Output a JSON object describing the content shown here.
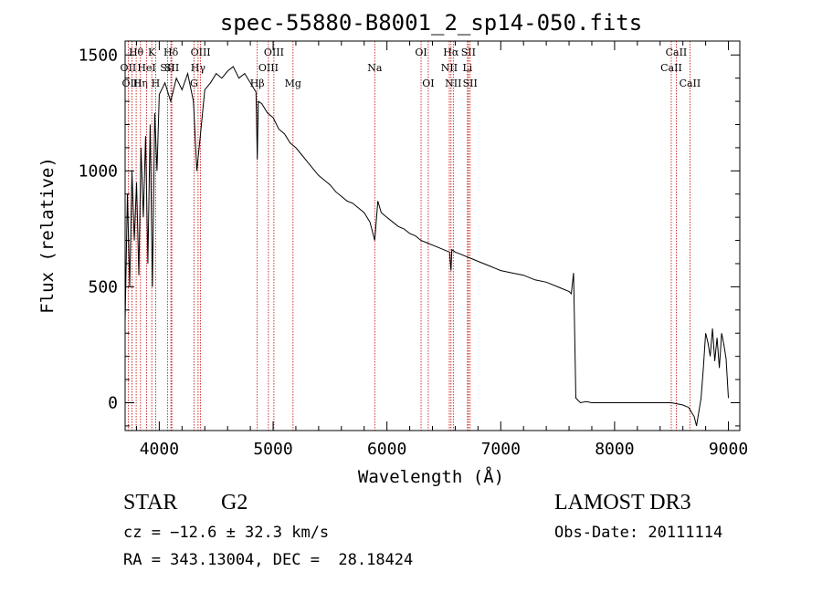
{
  "chart_data": {
    "type": "line",
    "title": "spec-55880-B8001_2_sp14-050.fits",
    "xlabel": "Wavelength (Å)",
    "ylabel": "Flux (relative)",
    "xlim": [
      3700,
      9100
    ],
    "ylim": [
      -120,
      1560
    ],
    "xticks": [
      4000,
      5000,
      6000,
      7000,
      8000,
      9000
    ],
    "yticks": [
      0,
      500,
      1000,
      1500
    ],
    "line_color": "#000000",
    "marker_color": "#c00000",
    "series": [
      {
        "name": "spectrum",
        "x": [
          3700,
          3720,
          3740,
          3760,
          3780,
          3800,
          3820,
          3840,
          3860,
          3880,
          3900,
          3920,
          3940,
          3960,
          3980,
          4000,
          4050,
          4100,
          4150,
          4200,
          4250,
          4300,
          4330,
          4360,
          4400,
          4450,
          4500,
          4550,
          4600,
          4650,
          4700,
          4750,
          4800,
          4850,
          4861,
          4870,
          4900,
          4950,
          5000,
          5050,
          5100,
          5150,
          5200,
          5250,
          5300,
          5350,
          5400,
          5450,
          5500,
          5550,
          5600,
          5650,
          5700,
          5750,
          5800,
          5850,
          5893,
          5920,
          5950,
          6000,
          6050,
          6100,
          6150,
          6200,
          6250,
          6300,
          6350,
          6400,
          6450,
          6500,
          6550,
          6563,
          6570,
          6600,
          6650,
          6700,
          6750,
          6800,
          6850,
          6900,
          6950,
          7000,
          7100,
          7200,
          7300,
          7400,
          7500,
          7550,
          7600,
          7620,
          7640,
          7660,
          7680,
          7700,
          7750,
          7800,
          7900,
          8000,
          8100,
          8200,
          8300,
          8400,
          8500,
          8600,
          8650,
          8700,
          8720,
          8740,
          8760,
          8780,
          8800,
          8820,
          8840,
          8860,
          8880,
          8900,
          8920,
          8940,
          8960,
          8980,
          9000
        ],
        "values": [
          350,
          900,
          500,
          1000,
          700,
          950,
          550,
          1100,
          800,
          1150,
          600,
          1200,
          500,
          1250,
          1000,
          1330,
          1380,
          1300,
          1400,
          1350,
          1420,
          1300,
          1000,
          1150,
          1350,
          1380,
          1420,
          1400,
          1430,
          1450,
          1400,
          1420,
          1380,
          1340,
          1050,
          1300,
          1290,
          1250,
          1230,
          1180,
          1160,
          1120,
          1100,
          1070,
          1040,
          1010,
          980,
          960,
          940,
          910,
          890,
          870,
          860,
          840,
          820,
          780,
          700,
          870,
          820,
          800,
          780,
          760,
          750,
          730,
          720,
          700,
          690,
          680,
          670,
          660,
          650,
          570,
          660,
          650,
          640,
          630,
          620,
          610,
          600,
          590,
          580,
          570,
          560,
          550,
          530,
          520,
          500,
          490,
          480,
          470,
          560,
          20,
          10,
          0,
          5,
          0,
          0,
          0,
          0,
          0,
          0,
          0,
          0,
          -10,
          -20,
          -60,
          -100,
          -40,
          20,
          150,
          300,
          260,
          200,
          320,
          180,
          280,
          150,
          300,
          250,
          190,
          20
        ]
      }
    ],
    "line_markers": [
      {
        "label": "Hθ",
        "x": 3797,
        "row": 1
      },
      {
        "label": "OII",
        "x": 3727,
        "row": 2
      },
      {
        "label": "OIII",
        "x": 3760,
        "row": 3
      },
      {
        "label": "Hη",
        "x": 3835,
        "row": 3
      },
      {
        "label": "HeI",
        "x": 3889,
        "row": 2
      },
      {
        "label": "K",
        "x": 3934,
        "row": 1
      },
      {
        "label": "H",
        "x": 3968,
        "row": 3
      },
      {
        "label": "SII",
        "x": 4072,
        "row": 2
      },
      {
        "label": "Hδ",
        "x": 4102,
        "row": 1
      },
      {
        "label": "SII",
        "x": 4110,
        "row": 2
      },
      {
        "label": "OIII",
        "x": 4363,
        "row": 1
      },
      {
        "label": "Hγ",
        "x": 4341,
        "row": 2
      },
      {
        "label": "G",
        "x": 4305,
        "row": 3
      },
      {
        "label": "Hβ",
        "x": 4861,
        "row": 3
      },
      {
        "label": "OIII",
        "x": 5007,
        "row": 1
      },
      {
        "label": "OIII",
        "x": 4959,
        "row": 2
      },
      {
        "label": "Mg",
        "x": 5175,
        "row": 3
      },
      {
        "label": "Na",
        "x": 5893,
        "row": 2
      },
      {
        "label": "OI",
        "x": 6300,
        "row": 1
      },
      {
        "label": "OI",
        "x": 6363,
        "row": 3
      },
      {
        "label": "Hα",
        "x": 6563,
        "row": 1
      },
      {
        "label": "SII",
        "x": 6716,
        "row": 1
      },
      {
        "label": "NII",
        "x": 6548,
        "row": 2
      },
      {
        "label": "Li",
        "x": 6708,
        "row": 2
      },
      {
        "label": "NII",
        "x": 6583,
        "row": 3
      },
      {
        "label": "SII",
        "x": 6731,
        "row": 3
      },
      {
        "label": "CaII",
        "x": 8542,
        "row": 1
      },
      {
        "label": "CaII",
        "x": 8498,
        "row": 2
      },
      {
        "label": "CaII",
        "x": 8662,
        "row": 3
      }
    ]
  },
  "info": {
    "object_class": "STAR",
    "subclass": "G2",
    "survey": "LAMOST DR3",
    "cz": "cz = −12.6 ± 32.3 km/s",
    "obs_date": "Obs-Date: 20111114",
    "coords": "RA = 343.13004, DEC =  28.18424"
  }
}
